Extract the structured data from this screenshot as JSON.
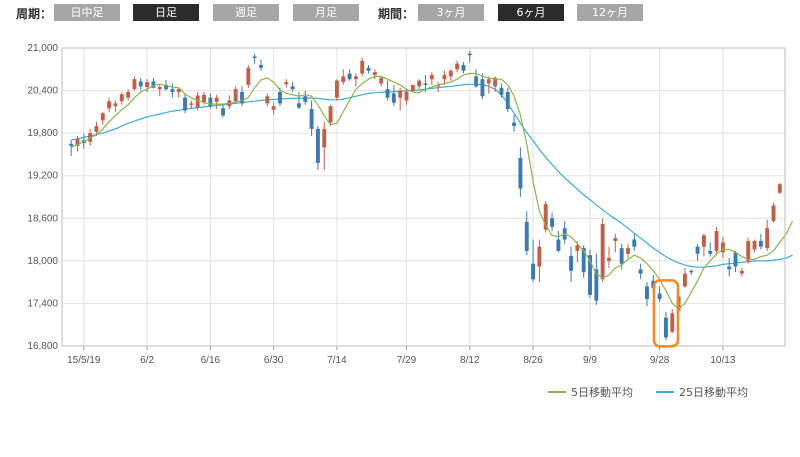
{
  "toolbar": {
    "period_label": "周期：",
    "period_buttons": [
      {
        "label": "日中足",
        "active": false
      },
      {
        "label": "日足",
        "active": true
      },
      {
        "label": "週足",
        "active": false
      },
      {
        "label": "月足",
        "active": false
      }
    ],
    "range_label": "期間：",
    "range_buttons": [
      {
        "label": "3ヶ月",
        "active": false
      },
      {
        "label": "6ヶ月",
        "active": true
      },
      {
        "label": "12ヶ月",
        "active": false
      }
    ]
  },
  "colors": {
    "up": "#c0604a",
    "down": "#3d7ab0",
    "ma5": "#8cb54a",
    "ma25": "#3aaed8",
    "highlight": "#f08a24",
    "button": "#a6a6a6",
    "button_active": "#2b2b2b"
  },
  "chart_data": {
    "type": "candlestick",
    "ylim": [
      16800,
      21000
    ],
    "y_ticks": [
      "21,000",
      "20,400",
      "19,800",
      "19,200",
      "18,600",
      "18,000",
      "17,400",
      "16,800"
    ],
    "x_tick_labels": [
      {
        "label": "15/5/19",
        "index": 2
      },
      {
        "label": "6/2",
        "index": 12
      },
      {
        "label": "6/16",
        "index": 22
      },
      {
        "label": "6/30",
        "index": 32
      },
      {
        "label": "7/14",
        "index": 42
      },
      {
        "label": "7/29",
        "index": 53
      },
      {
        "label": "8/12",
        "index": 63
      },
      {
        "label": "8/26",
        "index": 73
      },
      {
        "label": "9/9",
        "index": 82
      },
      {
        "label": "9/28",
        "index": 93
      },
      {
        "label": "10/13",
        "index": 103
      }
    ],
    "candles": [
      [
        19650,
        19700,
        19480,
        19620
      ],
      [
        19620,
        19760,
        19540,
        19720
      ],
      [
        19700,
        19790,
        19580,
        19660
      ],
      [
        19680,
        19860,
        19620,
        19800
      ],
      [
        19820,
        19960,
        19760,
        19900
      ],
      [
        19980,
        20100,
        19920,
        20080
      ],
      [
        20150,
        20300,
        20100,
        20250
      ],
      [
        20180,
        20260,
        20100,
        20220
      ],
      [
        20250,
        20380,
        20200,
        20350
      ],
      [
        20300,
        20420,
        20260,
        20380
      ],
      [
        20420,
        20600,
        20400,
        20560
      ],
      [
        20530,
        20580,
        20400,
        20460
      ],
      [
        20450,
        20560,
        20380,
        20520
      ],
      [
        20530,
        20580,
        20430,
        20440
      ],
      [
        20420,
        20480,
        20320,
        20450
      ],
      [
        20480,
        20550,
        20400,
        20420
      ],
      [
        20420,
        20500,
        20300,
        20380
      ],
      [
        20380,
        20440,
        20300,
        20420
      ],
      [
        20300,
        20360,
        20080,
        20120
      ],
      [
        20200,
        20260,
        20140,
        20220
      ],
      [
        20160,
        20380,
        20120,
        20330
      ],
      [
        20240,
        20380,
        20200,
        20340
      ],
      [
        20300,
        20360,
        20150,
        20180
      ],
      [
        20240,
        20340,
        20140,
        20300
      ],
      [
        20150,
        20220,
        20020,
        20050
      ],
      [
        20180,
        20330,
        20140,
        20260
      ],
      [
        20250,
        20460,
        20220,
        20420
      ],
      [
        20380,
        20460,
        20180,
        20220
      ],
      [
        20480,
        20760,
        20440,
        20720
      ],
      [
        20880,
        20920,
        20780,
        20860
      ],
      [
        20760,
        20840,
        20680,
        20720
      ],
      [
        20220,
        20360,
        20180,
        20320
      ],
      [
        20130,
        20240,
        20060,
        20180
      ],
      [
        20380,
        20440,
        20180,
        20220
      ],
      [
        20490,
        20560,
        20440,
        20520
      ],
      [
        20460,
        20520,
        20380,
        20420
      ],
      [
        20220,
        20380,
        20140,
        20160
      ],
      [
        20320,
        20400,
        20200,
        20240
      ],
      [
        20140,
        20260,
        19760,
        19860
      ],
      [
        19860,
        19900,
        19280,
        19380
      ],
      [
        19600,
        19960,
        19280,
        19860
      ],
      [
        19950,
        20200,
        19900,
        20180
      ],
      [
        20300,
        20560,
        20260,
        20540
      ],
      [
        20520,
        20700,
        20480,
        20600
      ],
      [
        20640,
        20700,
        20540,
        20560
      ],
      [
        20560,
        20640,
        20460,
        20600
      ],
      [
        20640,
        20860,
        20600,
        20820
      ],
      [
        20720,
        20760,
        20640,
        20680
      ],
      [
        20620,
        20700,
        20560,
        20660
      ],
      [
        20500,
        20600,
        20460,
        20580
      ],
      [
        20420,
        20540,
        20260,
        20300
      ],
      [
        20360,
        20480,
        20180,
        20230
      ],
      [
        20300,
        20440,
        20120,
        20400
      ],
      [
        20260,
        20420,
        20200,
        20380
      ],
      [
        20400,
        20480,
        20380,
        20480
      ],
      [
        20460,
        20560,
        20420,
        20540
      ],
      [
        20500,
        20620,
        20380,
        20480
      ],
      [
        20560,
        20660,
        20480,
        20620
      ],
      [
        20460,
        20520,
        20380,
        20480
      ],
      [
        20560,
        20680,
        20480,
        20620
      ],
      [
        20600,
        20700,
        20540,
        20680
      ],
      [
        20700,
        20820,
        20660,
        20780
      ],
      [
        20760,
        20800,
        20640,
        20680
      ],
      [
        20920,
        20960,
        20800,
        20900
      ],
      [
        20600,
        20700,
        20440,
        20460
      ],
      [
        20560,
        20640,
        20280,
        20320
      ],
      [
        20500,
        20600,
        20360,
        20560
      ],
      [
        20460,
        20600,
        20380,
        20580
      ],
      [
        20440,
        20500,
        20300,
        20340
      ],
      [
        20380,
        20440,
        20100,
        20140
      ],
      [
        19950,
        20060,
        19820,
        19900
      ],
      [
        19450,
        19600,
        18900,
        19020
      ],
      [
        18550,
        18700,
        18080,
        18140
      ],
      [
        17960,
        18300,
        17700,
        17740
      ],
      [
        17920,
        18300,
        17700,
        18200
      ],
      [
        18440,
        18840,
        18400,
        18800
      ],
      [
        18600,
        18680,
        18420,
        18480
      ],
      [
        18300,
        18420,
        18120,
        18140
      ],
      [
        18460,
        18560,
        18240,
        18300
      ],
      [
        18070,
        18200,
        17700,
        17860
      ],
      [
        18140,
        18280,
        17980,
        18220
      ],
      [
        18180,
        18220,
        17760,
        17840
      ],
      [
        18080,
        18160,
        17480,
        17520
      ],
      [
        17880,
        18100,
        17380,
        17440
      ],
      [
        17740,
        18600,
        17700,
        18520
      ],
      [
        18000,
        18200,
        17900,
        18040
      ],
      [
        18280,
        18380,
        18120,
        18320
      ],
      [
        18180,
        18240,
        17880,
        17960
      ],
      [
        18100,
        18240,
        18040,
        18180
      ],
      [
        18300,
        18380,
        18140,
        18200
      ],
      [
        17880,
        17960,
        17740,
        17820
      ],
      [
        17640,
        17700,
        17360,
        17460
      ],
      [
        17720,
        17800,
        17560,
        17620
      ],
      [
        17540,
        17640,
        17420,
        17460
      ],
      [
        17200,
        17280,
        16880,
        16920
      ],
      [
        17000,
        17320,
        16980,
        17260
      ],
      [
        17300,
        17560,
        17280,
        17500
      ],
      [
        17640,
        17900,
        17620,
        17820
      ],
      [
        17860,
        17880,
        17800,
        17840
      ],
      [
        18200,
        18240,
        18000,
        18100
      ],
      [
        18200,
        18380,
        18060,
        18360
      ],
      [
        18140,
        18260,
        18060,
        18100
      ],
      [
        18140,
        18480,
        18080,
        18420
      ],
      [
        18120,
        18340,
        18040,
        18260
      ],
      [
        17920,
        18040,
        17780,
        17880
      ],
      [
        18120,
        18140,
        17840,
        17920
      ],
      [
        17820,
        17900,
        17780,
        17860
      ],
      [
        18000,
        18320,
        17960,
        18280
      ],
      [
        18160,
        18300,
        18120,
        18280
      ],
      [
        18280,
        18380,
        18160,
        18200
      ],
      [
        18180,
        18580,
        18140,
        18460
      ],
      [
        18560,
        18820,
        18540,
        18780
      ],
      [
        18960,
        19100,
        18940,
        19080
      ]
    ],
    "highlight": {
      "from_index": 93,
      "to_index": 95
    },
    "series": [
      {
        "name": "5日移動平均",
        "values": [
          19600,
          19640,
          19680,
          19730,
          19780,
          19860,
          19960,
          20050,
          20130,
          20200,
          20300,
          20380,
          20420,
          20470,
          20490,
          20470,
          20450,
          20440,
          20350,
          20300,
          20260,
          20230,
          20210,
          20210,
          20210,
          20220,
          20240,
          20260,
          20300,
          20440,
          20550,
          20580,
          20520,
          20410,
          20360,
          20340,
          20320,
          20340,
          20320,
          20200,
          20040,
          19920,
          19940,
          20100,
          20260,
          20420,
          20500,
          20560,
          20600,
          20600,
          20560,
          20520,
          20480,
          20420,
          20380,
          20370,
          20420,
          20450,
          20480,
          20500,
          20520,
          20560,
          20620,
          20640,
          20640,
          20600,
          20580,
          20560,
          20560,
          20480,
          20320,
          20060,
          19650,
          19120,
          18700,
          18500,
          18360,
          18340,
          18380,
          18340,
          18240,
          18140,
          18000,
          17820,
          17760,
          17800,
          17900,
          17940,
          18020,
          18080,
          18040,
          17960,
          17860,
          17740,
          17580,
          17400,
          17320,
          17400,
          17560,
          17720,
          17900,
          18000,
          18100,
          18160,
          18160,
          18120,
          18060,
          18020,
          18020,
          18060,
          18080,
          18140,
          18260,
          18380,
          18560
        ]
      },
      {
        "name": "25日移動平均",
        "values": [
          19700,
          19720,
          19740,
          19760,
          19780,
          19800,
          19830,
          19860,
          19900,
          19940,
          19970,
          20000,
          20030,
          20050,
          20070,
          20090,
          20110,
          20120,
          20140,
          20150,
          20160,
          20170,
          20180,
          20190,
          20200,
          20210,
          20220,
          20230,
          20240,
          20250,
          20260,
          20270,
          20275,
          20280,
          20285,
          20290,
          20292,
          20295,
          20295,
          20290,
          20280,
          20270,
          20270,
          20280,
          20300,
          20320,
          20340,
          20360,
          20370,
          20375,
          20380,
          20385,
          20390,
          20395,
          20400,
          20410,
          20420,
          20430,
          20440,
          20450,
          20460,
          20470,
          20480,
          20490,
          20490,
          20480,
          20460,
          20420,
          20340,
          20220,
          20080,
          19940,
          19810,
          19690,
          19570,
          19460,
          19360,
          19260,
          19170,
          19090,
          19010,
          18930,
          18860,
          18790,
          18720,
          18650,
          18590,
          18530,
          18460,
          18390,
          18320,
          18250,
          18180,
          18120,
          18060,
          18010,
          17970,
          17940,
          17920,
          17910,
          17910,
          17920,
          17930,
          17950,
          17960,
          17970,
          17980,
          17990,
          18000,
          18000,
          18000,
          18010,
          18020,
          18040,
          18080
        ]
      }
    ],
    "legend": [
      "5日移動平均",
      "25日移動平均"
    ],
    "legend_position": "bottom-right",
    "grid": true
  }
}
